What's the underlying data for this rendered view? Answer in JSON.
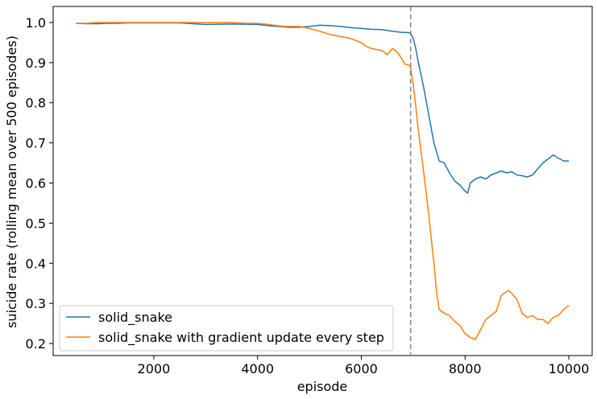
{
  "chart_data": {
    "type": "line",
    "title": "",
    "xlabel": "episode",
    "ylabel": "suicide rate (rolling mean over 500 episodes)",
    "xlim": [
      60,
      10450
    ],
    "ylim": [
      0.17,
      1.04
    ],
    "xticks": [
      2000,
      4000,
      6000,
      8000,
      10000
    ],
    "yticks": [
      0.2,
      0.3,
      0.4,
      0.5,
      0.6,
      0.7,
      0.8,
      0.9,
      1.0
    ],
    "xtick_labels": [
      "2000",
      "4000",
      "6000",
      "8000",
      "10000"
    ],
    "ytick_labels": [
      "0.2",
      "0.3",
      "0.4",
      "0.5",
      "0.6",
      "0.7",
      "0.8",
      "0.9",
      "1.0"
    ],
    "vline": {
      "x": 6950,
      "style": "dashed",
      "color": "#808080"
    },
    "legend": {
      "position": "lower-left"
    },
    "grid": false,
    "series": [
      {
        "name": "solid_snake",
        "color": "#1f77b4",
        "x": [
          500,
          700,
          900,
          1100,
          1300,
          1500,
          2000,
          2500,
          3000,
          3500,
          4000,
          4200,
          4400,
          4600,
          4800,
          5000,
          5200,
          5400,
          5600,
          5800,
          6000,
          6200,
          6400,
          6600,
          6800,
          6900,
          6950,
          7000,
          7050,
          7100,
          7200,
          7300,
          7400,
          7500,
          7600,
          7700,
          7800,
          7900,
          8000,
          8050,
          8100,
          8200,
          8300,
          8400,
          8500,
          8600,
          8700,
          8800,
          8900,
          9000,
          9100,
          9200,
          9300,
          9400,
          9500,
          9600,
          9700,
          9800,
          9900,
          10000
        ],
        "y": [
          0.998,
          0.997,
          0.997,
          0.998,
          0.998,
          0.999,
          0.999,
          0.999,
          0.995,
          0.996,
          0.995,
          0.992,
          0.99,
          0.988,
          0.988,
          0.99,
          0.993,
          0.992,
          0.99,
          0.987,
          0.985,
          0.983,
          0.982,
          0.978,
          0.975,
          0.975,
          0.973,
          0.96,
          0.935,
          0.9,
          0.84,
          0.77,
          0.7,
          0.655,
          0.65,
          0.625,
          0.605,
          0.595,
          0.58,
          0.575,
          0.6,
          0.61,
          0.615,
          0.61,
          0.62,
          0.625,
          0.63,
          0.625,
          0.628,
          0.62,
          0.618,
          0.615,
          0.62,
          0.635,
          0.65,
          0.66,
          0.67,
          0.662,
          0.655,
          0.655
        ]
      },
      {
        "name": "solid_snake with gradient update every step",
        "color": "#ff7f0e",
        "x": [
          500,
          700,
          900,
          1100,
          1500,
          2000,
          2500,
          3000,
          3200,
          3500,
          3800,
          4000,
          4200,
          4500,
          4800,
          5000,
          5200,
          5400,
          5600,
          5800,
          6000,
          6100,
          6200,
          6400,
          6500,
          6600,
          6700,
          6800,
          6850,
          6900,
          6950,
          7000,
          7050,
          7100,
          7200,
          7300,
          7400,
          7450,
          7500,
          7600,
          7700,
          7800,
          7900,
          8000,
          8100,
          8200,
          8300,
          8400,
          8500,
          8600,
          8700,
          8800,
          8850,
          8900,
          9000,
          9100,
          9200,
          9300,
          9400,
          9500,
          9600,
          9700,
          9800,
          9900,
          10000
        ],
        "y": [
          0.998,
          0.998,
          1.0,
          1.0,
          1.0,
          1.0,
          1.0,
          1.0,
          1.0,
          1.0,
          0.998,
          0.998,
          0.995,
          0.99,
          0.99,
          0.985,
          0.978,
          0.97,
          0.965,
          0.96,
          0.95,
          0.94,
          0.935,
          0.93,
          0.92,
          0.935,
          0.925,
          0.905,
          0.895,
          0.895,
          0.89,
          0.845,
          0.79,
          0.73,
          0.63,
          0.52,
          0.4,
          0.33,
          0.285,
          0.275,
          0.27,
          0.255,
          0.245,
          0.225,
          0.215,
          0.21,
          0.235,
          0.26,
          0.27,
          0.28,
          0.32,
          0.33,
          0.332,
          0.325,
          0.31,
          0.275,
          0.265,
          0.27,
          0.26,
          0.26,
          0.25,
          0.265,
          0.27,
          0.285,
          0.295
        ]
      }
    ]
  }
}
